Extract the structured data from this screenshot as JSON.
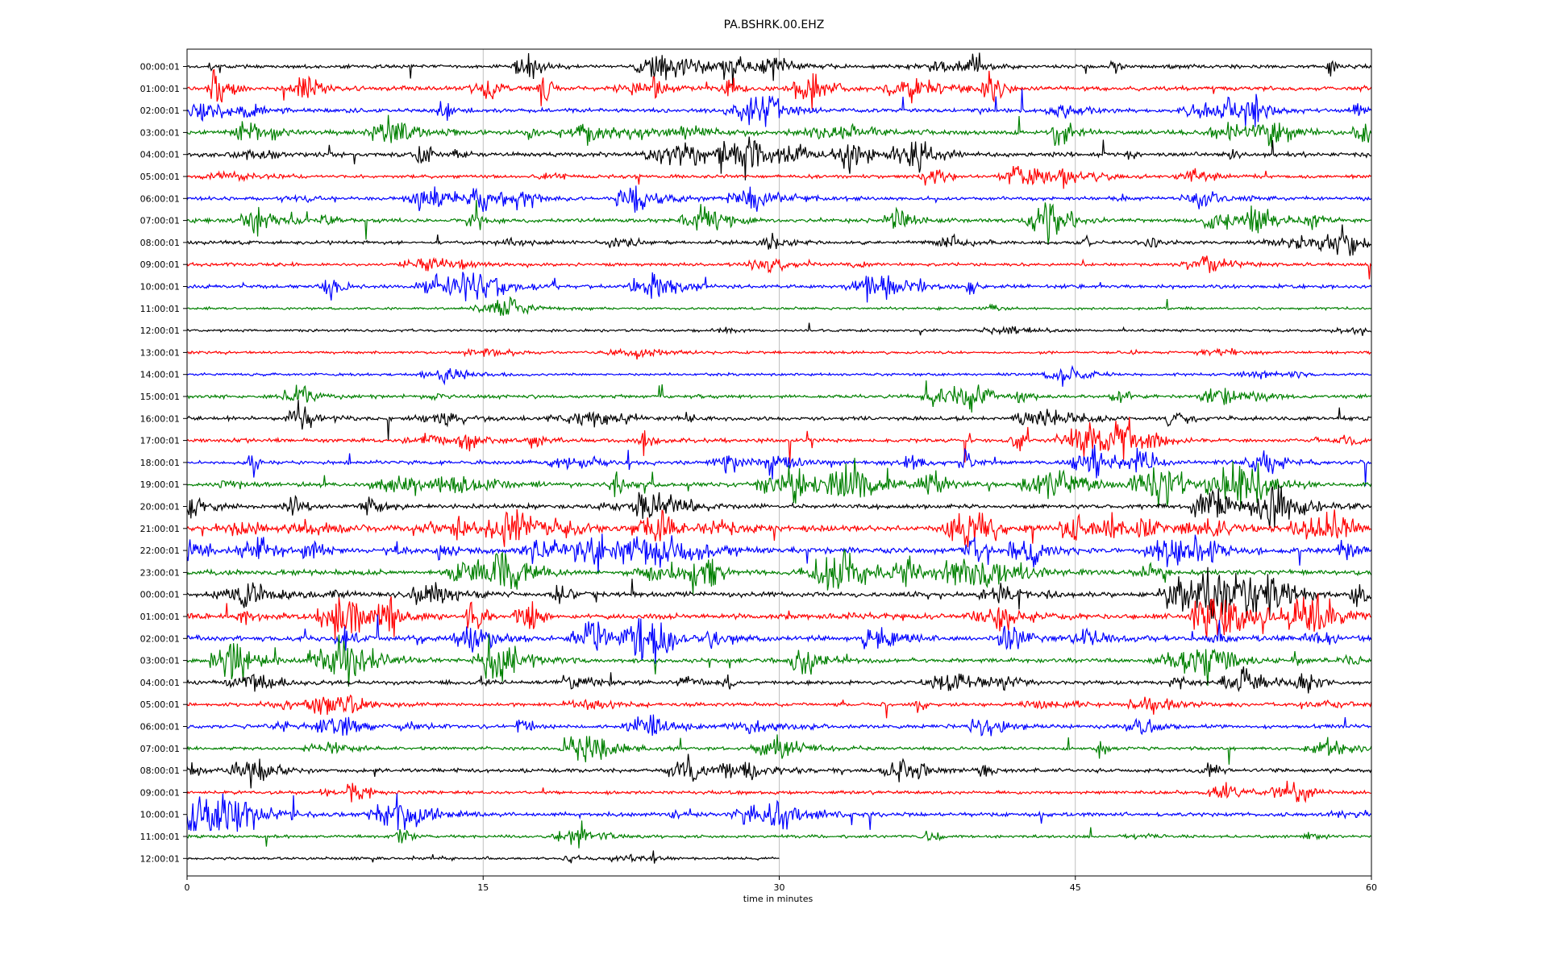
{
  "chart_data": {
    "type": "line",
    "title": "PA.BSHRK.00.EHZ",
    "xlabel": "time in minutes",
    "ylabel": "",
    "x_ticks": [
      0,
      15,
      30,
      45,
      60
    ],
    "xlim": [
      0,
      60
    ],
    "grid": "vertical",
    "colors": [
      "#000000",
      "#ff0000",
      "#0000ff",
      "#008000"
    ],
    "rows": [
      {
        "label": "00:00:01",
        "activity": 0.9
      },
      {
        "label": "01:00:01",
        "activity": 1.3
      },
      {
        "label": "02:00:01",
        "activity": 1.0
      },
      {
        "label": "03:00:01",
        "activity": 1.3
      },
      {
        "label": "04:00:01",
        "activity": 1.2
      },
      {
        "label": "05:00:01",
        "activity": 0.7
      },
      {
        "label": "06:00:01",
        "activity": 0.8
      },
      {
        "label": "07:00:01",
        "activity": 1.0
      },
      {
        "label": "08:00:01",
        "activity": 0.8
      },
      {
        "label": "09:00:01",
        "activity": 0.6
      },
      {
        "label": "10:00:01",
        "activity": 0.8
      },
      {
        "label": "11:00:01",
        "activity": 0.2
      },
      {
        "label": "12:00:01",
        "activity": 0.2
      },
      {
        "label": "13:00:01",
        "activity": 0.3
      },
      {
        "label": "14:00:01",
        "activity": 0.3
      },
      {
        "label": "15:00:01",
        "activity": 0.8
      },
      {
        "label": "16:00:01",
        "activity": 1.0
      },
      {
        "label": "17:00:01",
        "activity": 1.0
      },
      {
        "label": "18:00:01",
        "activity": 1.1
      },
      {
        "label": "19:00:01",
        "activity": 1.4
      },
      {
        "label": "20:00:01",
        "activity": 1.1
      },
      {
        "label": "21:00:01",
        "activity": 1.8
      },
      {
        "label": "22:00:01",
        "activity": 1.9
      },
      {
        "label": "23:00:01",
        "activity": 1.6
      },
      {
        "label": "00:00:01",
        "activity": 1.5
      },
      {
        "label": "01:00:01",
        "activity": 1.7
      },
      {
        "label": "02:00:01",
        "activity": 1.6
      },
      {
        "label": "03:00:01",
        "activity": 1.2
      },
      {
        "label": "04:00:01",
        "activity": 1.0
      },
      {
        "label": "05:00:01",
        "activity": 0.8
      },
      {
        "label": "06:00:01",
        "activity": 0.8
      },
      {
        "label": "07:00:01",
        "activity": 0.6
      },
      {
        "label": "08:00:01",
        "activity": 0.9
      },
      {
        "label": "09:00:01",
        "activity": 0.6
      },
      {
        "label": "10:00:01",
        "activity": 1.0
      },
      {
        "label": "11:00:01",
        "activity": 0.4
      },
      {
        "label": "12:00:01",
        "activity": 0.3,
        "end_minute": 30
      }
    ]
  }
}
